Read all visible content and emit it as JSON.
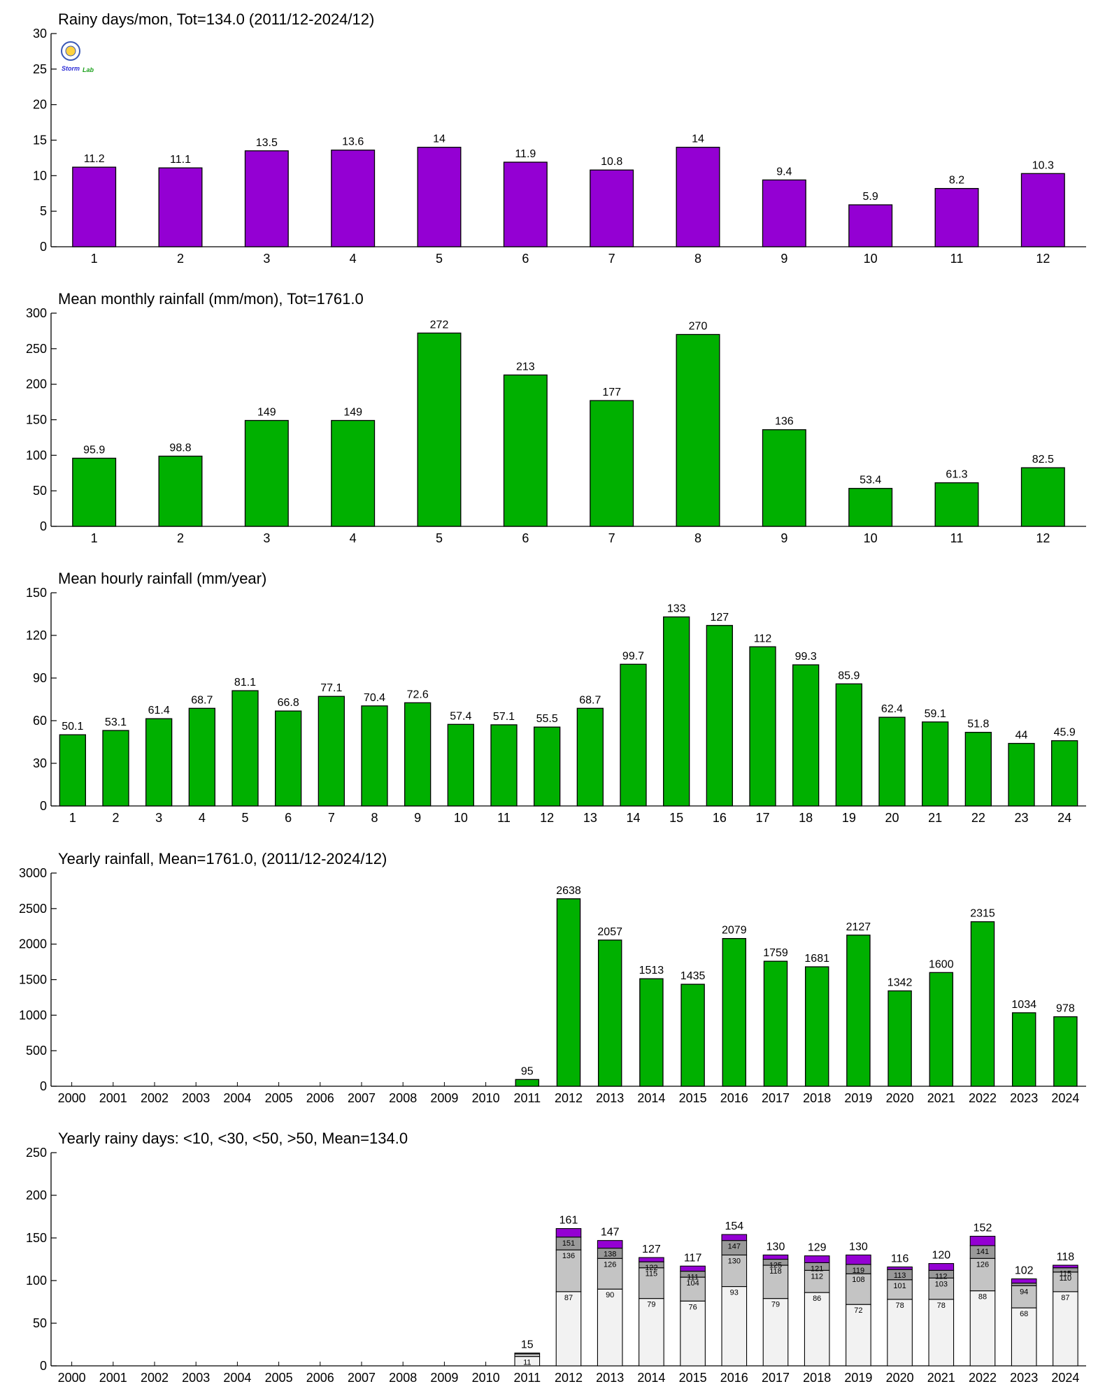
{
  "colors": {
    "purple": "#9400d3",
    "green": "#00b000",
    "white": "#f2f2f2",
    "lightgray": "#c4c4c4",
    "darkgray": "#999999"
  },
  "logo": {
    "text1": "Storm",
    "text2": "Lab"
  },
  "chart_data": [
    {
      "type": "bar",
      "title": "Rainy days/mon, Tot=134.0 (2011/12-2024/12)",
      "categories": [
        "1",
        "2",
        "3",
        "4",
        "5",
        "6",
        "7",
        "8",
        "9",
        "10",
        "11",
        "12"
      ],
      "values": [
        11.2,
        11.1,
        13.5,
        13.6,
        14,
        11.9,
        10.8,
        14,
        9.4,
        5.9,
        8.2,
        10.3
      ],
      "value_labels": [
        "11.2",
        "11.1",
        "13.5",
        "13.6",
        "14",
        "11.9",
        "10.8",
        "14",
        "9.4",
        "5.9",
        "8.2",
        "10.3"
      ],
      "ylim": [
        0,
        30
      ],
      "yticks": [
        0,
        5,
        10,
        15,
        20,
        25,
        30
      ],
      "color": "purple",
      "has_logo": true
    },
    {
      "type": "bar",
      "title": "Mean monthly rainfall (mm/mon), Tot=1761.0",
      "categories": [
        "1",
        "2",
        "3",
        "4",
        "5",
        "6",
        "7",
        "8",
        "9",
        "10",
        "11",
        "12"
      ],
      "values": [
        95.9,
        98.8,
        149,
        149,
        272,
        213,
        177,
        270,
        136,
        53.4,
        61.3,
        82.5
      ],
      "value_labels": [
        "95.9",
        "98.8",
        "149",
        "149",
        "272",
        "213",
        "177",
        "270",
        "136",
        "53.4",
        "61.3",
        "82.5"
      ],
      "ylim": [
        0,
        300
      ],
      "yticks": [
        0,
        50,
        100,
        150,
        200,
        250,
        300
      ],
      "color": "green"
    },
    {
      "type": "bar",
      "title": "Mean hourly rainfall (mm/year)",
      "categories": [
        "1",
        "2",
        "3",
        "4",
        "5",
        "6",
        "7",
        "8",
        "9",
        "10",
        "11",
        "12",
        "13",
        "14",
        "15",
        "16",
        "17",
        "18",
        "19",
        "20",
        "21",
        "22",
        "23",
        "24"
      ],
      "values": [
        50.1,
        53.1,
        61.4,
        68.7,
        81.1,
        66.8,
        77.1,
        70.4,
        72.6,
        57.4,
        57.1,
        55.5,
        68.7,
        99.7,
        133,
        127,
        112,
        99.3,
        85.9,
        62.4,
        59.1,
        51.8,
        44,
        45.9
      ],
      "value_labels": [
        "50.1",
        "53.1",
        "61.4",
        "68.7",
        "81.1",
        "66.8",
        "77.1",
        "70.4",
        "72.6",
        "57.4",
        "57.1",
        "55.5",
        "68.7",
        "99.7",
        "133",
        "127",
        "112",
        "99.3",
        "85.9",
        "62.4",
        "59.1",
        "51.8",
        "44",
        "45.9"
      ],
      "ylim": [
        0,
        150
      ],
      "yticks": [
        0,
        30,
        60,
        90,
        120,
        150
      ],
      "color": "green"
    },
    {
      "type": "bar",
      "title": "Yearly rainfall, Mean=1761.0, (2011/12-2024/12)",
      "categories": [
        "2000",
        "2001",
        "2002",
        "2003",
        "2004",
        "2005",
        "2006",
        "2007",
        "2008",
        "2009",
        "2010",
        "2011",
        "2012",
        "2013",
        "2014",
        "2015",
        "2016",
        "2017",
        "2018",
        "2019",
        "2020",
        "2021",
        "2022",
        "2023",
        "2024"
      ],
      "values": [
        0,
        0,
        0,
        0,
        0,
        0,
        0,
        0,
        0,
        0,
        0,
        95,
        2638,
        2057,
        1513,
        1435,
        2079,
        1759,
        1681,
        2127,
        1342,
        1600,
        2315,
        1034,
        978
      ],
      "value_labels": [
        "",
        "",
        "",
        "",
        "",
        "",
        "",
        "",
        "",
        "",
        "",
        "95",
        "2638",
        "2057",
        "1513",
        "1435",
        "2079",
        "1759",
        "1681",
        "2127",
        "1342",
        "1600",
        "2315",
        "1034",
        "978"
      ],
      "ylim": [
        0,
        3000
      ],
      "yticks": [
        0,
        500,
        1000,
        1500,
        2000,
        2500,
        3000
      ],
      "color": "green"
    },
    {
      "type": "stacked_bar",
      "title": "Yearly rainy days: <10, <30, <50, >50, Mean=134.0",
      "categories": [
        "2000",
        "2001",
        "2002",
        "2003",
        "2004",
        "2005",
        "2006",
        "2007",
        "2008",
        "2009",
        "2010",
        "2011",
        "2012",
        "2013",
        "2014",
        "2015",
        "2016",
        "2017",
        "2018",
        "2019",
        "2020",
        "2021",
        "2022",
        "2023",
        "2024"
      ],
      "cumulative": {
        "lt10": [
          0,
          0,
          0,
          0,
          0,
          0,
          0,
          0,
          0,
          0,
          0,
          11,
          87,
          90,
          79,
          76,
          93,
          79,
          86,
          72,
          78,
          78,
          88,
          68,
          87
        ],
        "lt30": [
          0,
          0,
          0,
          0,
          0,
          0,
          0,
          0,
          0,
          0,
          0,
          14,
          136,
          126,
          115,
          104,
          130,
          118,
          112,
          108,
          101,
          103,
          126,
          94,
          110
        ],
        "lt50": [
          0,
          0,
          0,
          0,
          0,
          0,
          0,
          0,
          0,
          0,
          0,
          15,
          151,
          138,
          122,
          111,
          147,
          125,
          121,
          119,
          113,
          112,
          141,
          97,
          115
        ],
        "total": [
          0,
          0,
          0,
          0,
          0,
          0,
          0,
          0,
          0,
          0,
          0,
          15,
          161,
          147,
          127,
          117,
          154,
          130,
          129,
          130,
          116,
          120,
          152,
          102,
          118
        ]
      },
      "segment_labels": {
        "lt10": [
          "",
          "",
          "",
          "",
          "",
          "",
          "",
          "",
          "",
          "",
          "",
          "11",
          "87",
          "90",
          "79",
          "76",
          "93",
          "79",
          "86",
          "72",
          "78",
          "78",
          "88",
          "68",
          "87"
        ],
        "lt30": [
          "",
          "",
          "",
          "",
          "",
          "",
          "",
          "",
          "",
          "",
          "",
          "",
          "136",
          "126",
          "115",
          "104",
          "130",
          "118",
          "112",
          "108",
          "101",
          "103",
          "126",
          "94",
          "110"
        ],
        "lt50": [
          "",
          "",
          "",
          "",
          "",
          "",
          "",
          "",
          "",
          "",
          "",
          "",
          "151",
          "138",
          "122",
          "111",
          "147",
          "125",
          "121",
          "119",
          "113",
          "112",
          "141",
          "",
          "115"
        ]
      },
      "total_labels": [
        "",
        "",
        "",
        "",
        "",
        "",
        "",
        "",
        "",
        "",
        "",
        "15",
        "161",
        "147",
        "127",
        "117",
        "154",
        "130",
        "129",
        "130",
        "116",
        "120",
        "152",
        "102",
        "118"
      ],
      "ylim": [
        0,
        250
      ],
      "yticks": [
        0,
        50,
        100,
        150,
        200,
        250
      ],
      "segment_colors": [
        "white",
        "lightgray",
        "darkgray",
        "purple"
      ]
    }
  ]
}
